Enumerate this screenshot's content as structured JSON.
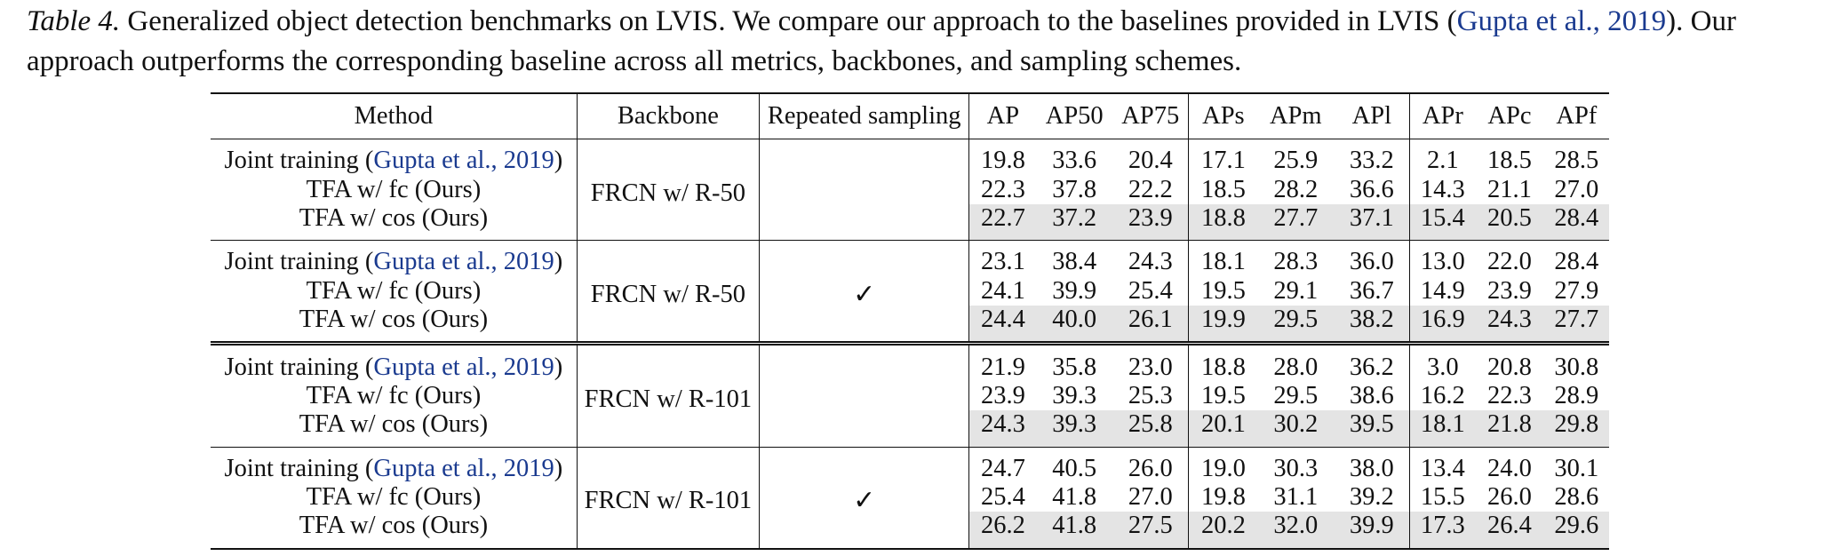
{
  "caption": {
    "label": "Table 4.",
    "text_before_cite": " Generalized object detection benchmarks on LVIS. We compare our approach to the baselines provided in LVIS (",
    "cite": "Gupta et al., 2019",
    "text_after_cite": "). Our approach outperforms the corresponding baseline across all metrics, backbones, and sampling schemes."
  },
  "headers": {
    "method": "Method",
    "backbone": "Backbone",
    "repeated": "Repeated sampling",
    "metrics": [
      "AP",
      "AP50",
      "AP75",
      "APs",
      "APm",
      "APl",
      "APr",
      "APc",
      "APf"
    ]
  },
  "groups": [
    {
      "backbone": "FRCN w/ R-50",
      "repeated": "",
      "rows": [
        {
          "method": "Joint training (",
          "cite": "Gupta et al., 2019",
          "method_suffix": ")",
          "values": [
            "19.8",
            "33.6",
            "20.4",
            "17.1",
            "25.9",
            "33.2",
            "2.1",
            "18.5",
            "28.5"
          ],
          "bold": [
            8
          ]
        },
        {
          "method": "TFA w/ fc (Ours)",
          "values": [
            "22.3",
            "37.8",
            "22.2",
            "18.5",
            "28.2",
            "36.6",
            "14.3",
            "21.1",
            "27.0"
          ],
          "bold": []
        },
        {
          "method": "TFA w/ cos (Ours)",
          "values": [
            "22.7",
            "37.2",
            "23.9",
            "18.8",
            "27.7",
            "37.1",
            "15.4",
            "20.5",
            "28.4"
          ],
          "bold": []
        }
      ]
    },
    {
      "backbone": "FRCN w/ R-50",
      "repeated": "✓",
      "rows": [
        {
          "method": "Joint training (",
          "cite": "Gupta et al., 2019",
          "method_suffix": ")",
          "values": [
            "23.1",
            "38.4",
            "24.3",
            "18.1",
            "28.3",
            "36.0",
            "13.0",
            "22.0",
            "28.4"
          ],
          "bold": []
        },
        {
          "method": "TFA w/ fc (Ours)",
          "values": [
            "24.1",
            "39.9",
            "25.4",
            "19.5",
            "29.1",
            "36.7",
            "14.9",
            "23.9",
            "27.9"
          ],
          "bold": []
        },
        {
          "method": "TFA w/ cos (Ours)",
          "values": [
            "24.4",
            "40.0",
            "26.1",
            "19.9",
            "29.5",
            "38.2",
            "16.9",
            "24.3",
            "27.7"
          ],
          "bold": [
            0,
            1,
            2,
            3,
            4,
            5,
            6,
            7
          ]
        }
      ]
    },
    {
      "backbone": "FRCN w/ R-101",
      "repeated": "",
      "rows": [
        {
          "method": "Joint training (",
          "cite": "Gupta et al., 2019",
          "method_suffix": ")",
          "values": [
            "21.9",
            "35.8",
            "23.0",
            "18.8",
            "28.0",
            "36.2",
            "3.0",
            "20.8",
            "30.8"
          ],
          "bold": [
            8
          ]
        },
        {
          "method": "TFA w/ fc (Ours)",
          "values": [
            "23.9",
            "39.3",
            "25.3",
            "19.5",
            "29.5",
            "38.6",
            "16.2",
            "22.3",
            "28.9"
          ],
          "bold": []
        },
        {
          "method": "TFA w/ cos (Ours)",
          "values": [
            "24.3",
            "39.3",
            "25.8",
            "20.1",
            "30.2",
            "39.5",
            "18.1",
            "21.8",
            "29.8"
          ],
          "bold": [
            6
          ]
        }
      ]
    },
    {
      "backbone": "FRCN w/ R-101",
      "repeated": "✓",
      "rows": [
        {
          "method": "Joint training (",
          "cite": "Gupta et al., 2019",
          "method_suffix": ")",
          "values": [
            "24.7",
            "40.5",
            "26.0",
            "19.0",
            "30.3",
            "38.0",
            "13.4",
            "24.0",
            "30.1"
          ],
          "bold": []
        },
        {
          "method": "TFA w/ fc (Ours)",
          "values": [
            "25.4",
            "41.8",
            "27.0",
            "19.8",
            "31.1",
            "39.2",
            "15.5",
            "26.0",
            "28.6"
          ],
          "bold": [
            1
          ]
        },
        {
          "method": "TFA w/ cos (Ours)",
          "values": [
            "26.2",
            "41.8",
            "27.5",
            "20.2",
            "32.0",
            "39.9",
            "17.3",
            "26.4",
            "29.6"
          ],
          "bold": [
            0,
            1,
            2,
            3,
            4,
            5,
            7
          ]
        }
      ]
    }
  ]
}
